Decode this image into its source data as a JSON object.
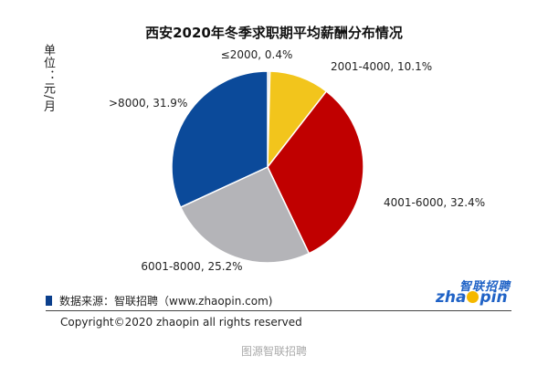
{
  "chart_data": {
    "type": "pie",
    "title": "西安2020年冬季求职期平均薪酬分布情况",
    "unit_label": "单位：元/月",
    "slices": [
      {
        "label": "≤2000, 0.4%",
        "value": 0.4,
        "color": "#d7d7d7"
      },
      {
        "label": "2001-4000, 10.1%",
        "value": 10.1,
        "color": "#f2c51c"
      },
      {
        "label": "4001-6000, 32.4%",
        "value": 32.4,
        "color": "#c00000"
      },
      {
        "label": "6001-8000, 25.2%",
        "value": 25.2,
        "color": "#b4b4b8"
      },
      {
        "label": ">8000, 31.9%",
        "value": 31.9,
        "color": "#0b4a9a"
      }
    ]
  },
  "footer": {
    "source": "数据来源：智联招聘（www.zhaopin.com)",
    "copyright": "Copyright©2020 zhaopin all rights reserved",
    "watermark": "图源智联招聘"
  },
  "logo": {
    "top_text": "智联招聘",
    "main_text_a": "zha",
    "main_text_b": "pin"
  }
}
